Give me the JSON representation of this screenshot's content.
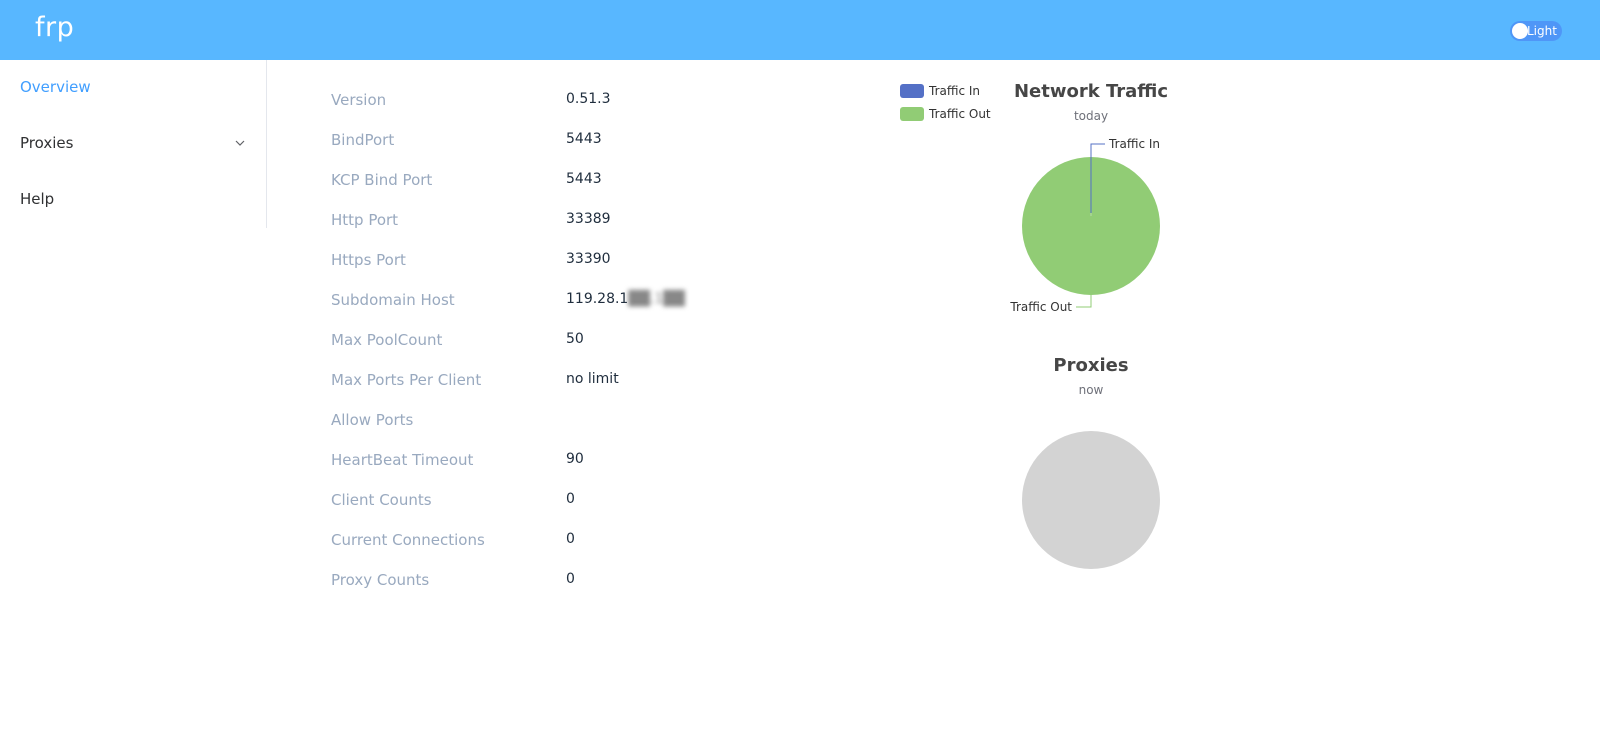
{
  "header": {
    "brand": "frp",
    "theme_label": "Light"
  },
  "sidebar": {
    "items": [
      {
        "label": "Overview",
        "active": true
      },
      {
        "label": "Proxies",
        "expandable": true
      },
      {
        "label": "Help"
      }
    ]
  },
  "server_info": [
    {
      "key": "Version",
      "value": "0.51.3"
    },
    {
      "key": "BindPort",
      "value": "5443"
    },
    {
      "key": "KCP Bind Port",
      "value": "5443"
    },
    {
      "key": "Http Port",
      "value": "33389"
    },
    {
      "key": "Https Port",
      "value": "33390"
    },
    {
      "key": "Subdomain Host",
      "value": "119.28.1",
      "value_obscured": "██.1██"
    },
    {
      "key": "Max PoolCount",
      "value": "50"
    },
    {
      "key": "Max Ports Per Client",
      "value": "no limit"
    },
    {
      "key": "Allow Ports",
      "value": ""
    },
    {
      "key": "HeartBeat Timeout",
      "value": "90"
    },
    {
      "key": "Client Counts",
      "value": "0"
    },
    {
      "key": "Current Connections",
      "value": "0"
    },
    {
      "key": "Proxy Counts",
      "value": "0"
    }
  ],
  "chart_data": [
    {
      "type": "pie",
      "title": "Network Traffic",
      "subtitle": "today",
      "legend": {
        "placement": "top-left",
        "entries": [
          "Traffic In",
          "Traffic Out"
        ]
      },
      "slices": [
        {
          "label": "Traffic In",
          "value": 0.002,
          "color": "#5470c6"
        },
        {
          "label": "Traffic Out",
          "value": 99.998,
          "color": "#91cc75"
        }
      ]
    },
    {
      "type": "pie",
      "title": "Proxies",
      "subtitle": "now",
      "slices": [],
      "empty_color": "#d3d3d3"
    }
  ]
}
